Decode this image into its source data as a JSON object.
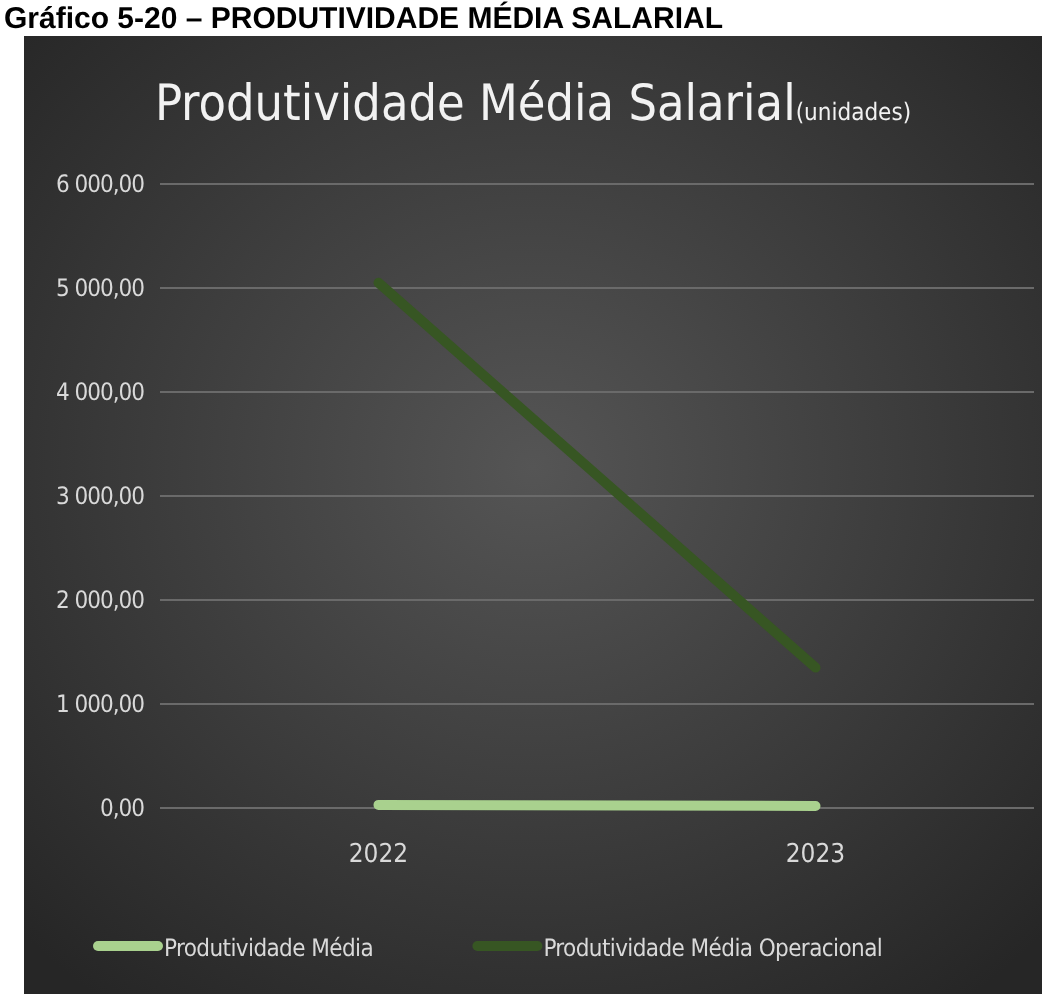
{
  "chart_data": {
    "type": "line",
    "title": "Produtividade Média Salarial",
    "subtitle": "(unidades)",
    "annotations": [
      "Gráfico 5-20 – PRODUTIVIDADE MÉDIA SALARIAL"
    ],
    "categories": [
      "2022",
      "2023"
    ],
    "series": [
      {
        "name": "Produtividade Média",
        "color": "#a9d18e",
        "values": [
          30,
          20
        ]
      },
      {
        "name": "Produtividade Média Operacional",
        "color": "#375623",
        "values": [
          5050,
          1350
        ]
      }
    ],
    "ylim": [
      0,
      6000
    ],
    "yticks": [
      {
        "value": 0,
        "label": "0,00"
      },
      {
        "value": 1000,
        "label": "1 000,00"
      },
      {
        "value": 2000,
        "label": "2 000,00"
      },
      {
        "value": 3000,
        "label": "3 000,00"
      },
      {
        "value": 4000,
        "label": "4 000,00"
      },
      {
        "value": 5000,
        "label": "5 000,00"
      },
      {
        "value": 6000,
        "label": "6 000,00"
      }
    ],
    "grid": "y",
    "legend": "bottom",
    "line_style": "solid"
  }
}
